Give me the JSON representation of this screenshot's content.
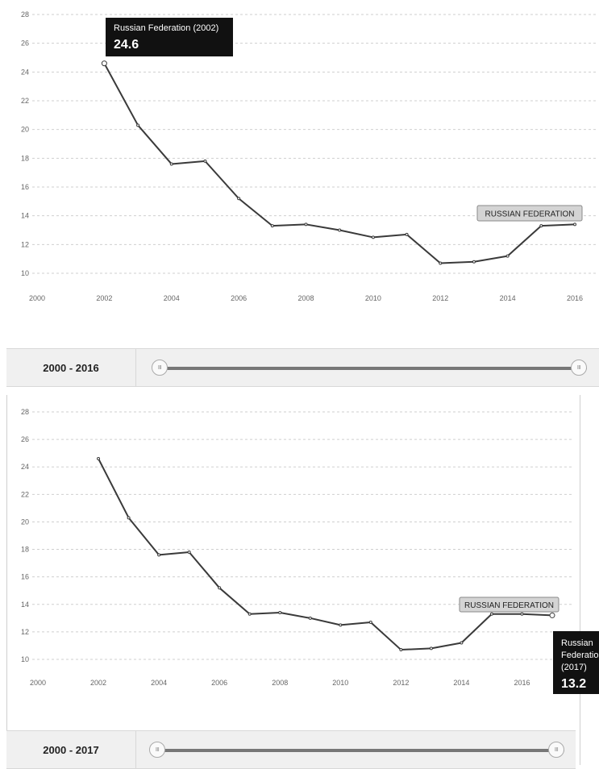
{
  "chart_data": [
    {
      "type": "line",
      "x": [
        2002,
        2003,
        2004,
        2005,
        2006,
        2007,
        2008,
        2009,
        2010,
        2011,
        2012,
        2013,
        2014,
        2015,
        2016
      ],
      "series": [
        {
          "name": "RUSSIAN FEDERATION",
          "values": [
            24.6,
            20.3,
            17.6,
            17.8,
            15.2,
            13.3,
            13.4,
            13.0,
            12.5,
            12.7,
            10.7,
            10.8,
            11.2,
            13.3,
            13.4
          ]
        }
      ],
      "xlim": [
        2000,
        2016
      ],
      "ylim": [
        10,
        28
      ],
      "x_ticks": [
        "2000",
        "2002",
        "2004",
        "2006",
        "2008",
        "2010",
        "2012",
        "2014",
        "2016"
      ],
      "y_ticks": [
        "10",
        "12",
        "14",
        "16",
        "18",
        "20",
        "22",
        "24",
        "26",
        "28"
      ],
      "grid": true,
      "legend_label": "RUSSIAN FEDERATION",
      "tooltip": {
        "name": "Russian Federation (2002)",
        "value": "24.6",
        "year": 2002
      }
    },
    {
      "type": "line",
      "x": [
        2002,
        2003,
        2004,
        2005,
        2006,
        2007,
        2008,
        2009,
        2010,
        2011,
        2012,
        2013,
        2014,
        2015,
        2016,
        2017
      ],
      "series": [
        {
          "name": "RUSSIAN FEDERATION",
          "values": [
            24.6,
            20.3,
            17.6,
            17.8,
            15.2,
            13.3,
            13.4,
            13.0,
            12.5,
            12.7,
            10.7,
            10.8,
            11.2,
            13.3,
            13.3,
            13.2
          ]
        }
      ],
      "xlim": [
        2000,
        2017
      ],
      "ylim": [
        10,
        28
      ],
      "x_ticks": [
        "2000",
        "2002",
        "2004",
        "2006",
        "2008",
        "2010",
        "2012",
        "2014",
        "2016"
      ],
      "y_ticks": [
        "10",
        "12",
        "14",
        "16",
        "18",
        "20",
        "22",
        "24",
        "26",
        "28"
      ],
      "grid": true,
      "legend_label": "RUSSIAN FEDERATION",
      "tooltip": {
        "name_lines": [
          "Russian",
          "Federation",
          "(2017)"
        ],
        "value": "13.2",
        "year": 2017
      }
    }
  ],
  "range_selectors": [
    {
      "label": "2000 - 2016",
      "handle_glyph": "III"
    },
    {
      "label": "2000 - 2017",
      "handle_glyph": "III"
    }
  ],
  "colors": {
    "line": "#3a3a3a",
    "tooltip_bg": "#111111",
    "legend_bg": "#d4d4d4",
    "range_bg": "#f0f0f0"
  }
}
